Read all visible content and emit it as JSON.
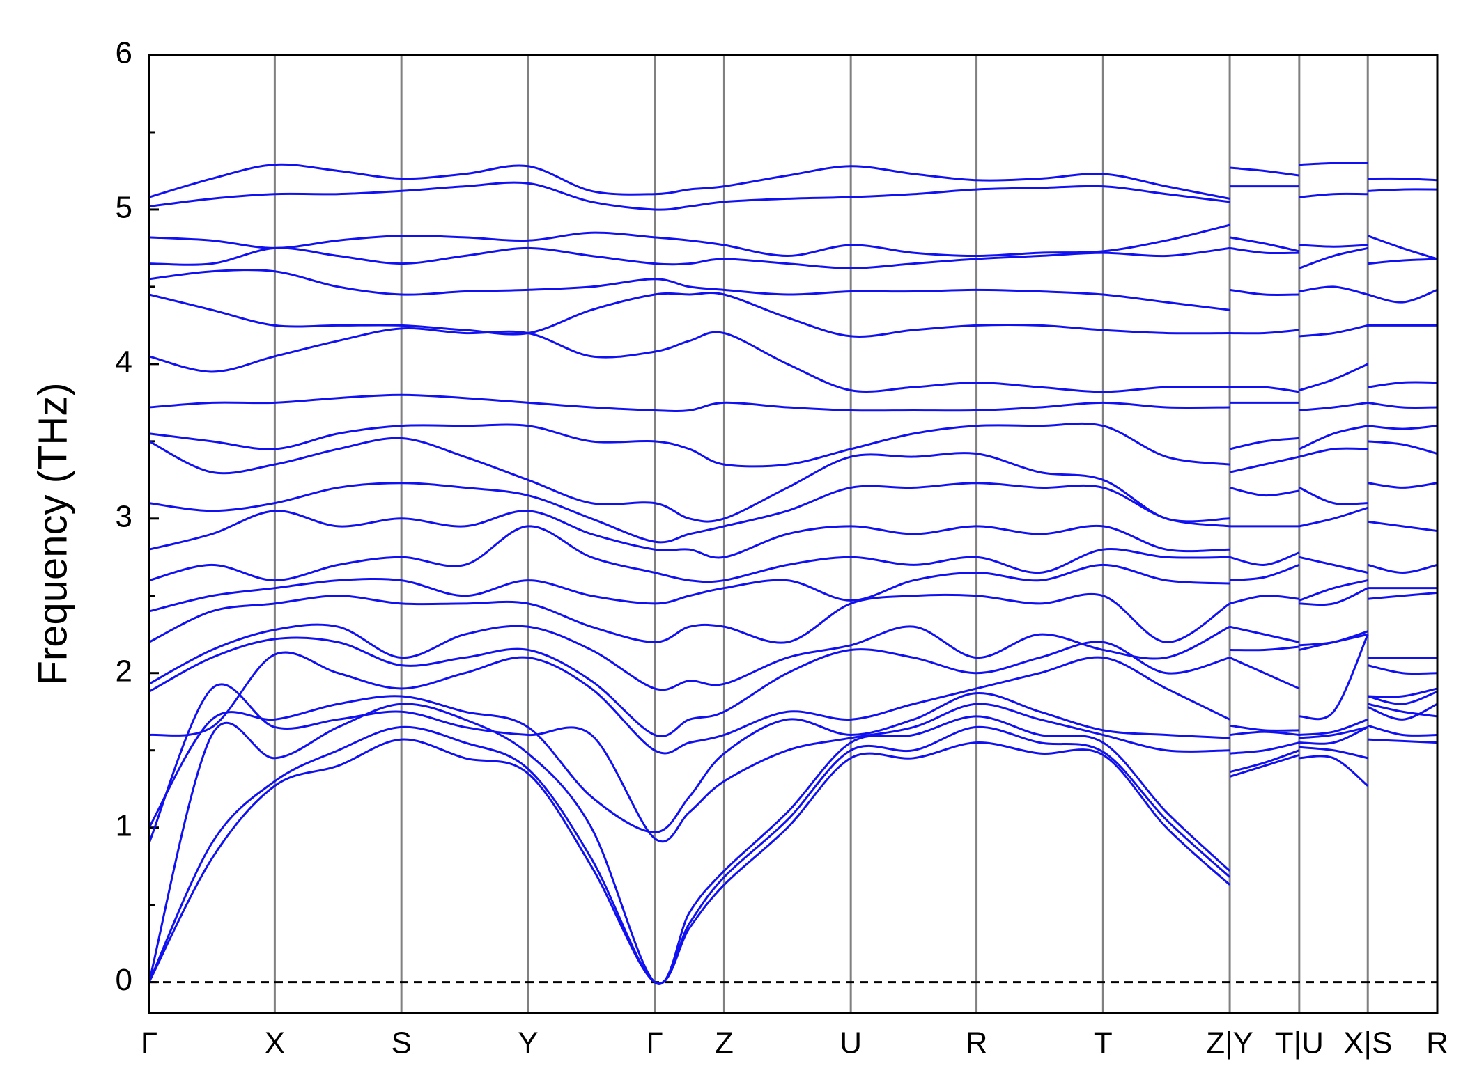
{
  "chart_data": {
    "type": "line",
    "ylabel": "Frequency (THz)",
    "color": "#1010f0",
    "grid": "x",
    "zeroline": true,
    "xlim": [
      0,
      13.53
    ],
    "ylim": [
      -0.2,
      6
    ],
    "xticks": [
      {
        "value": 0,
        "label": "Γ"
      },
      {
        "value": 1.32,
        "label": "X"
      },
      {
        "value": 2.65,
        "label": "S"
      },
      {
        "value": 3.98,
        "label": "Y"
      },
      {
        "value": 5.31,
        "label": "Γ"
      },
      {
        "value": 6.04,
        "label": "Z"
      },
      {
        "value": 7.37,
        "label": "U"
      },
      {
        "value": 8.69,
        "label": "R"
      },
      {
        "value": 10.02,
        "label": "T"
      },
      {
        "value": 11.35,
        "label": "Z|Y"
      },
      {
        "value": 12.08,
        "label": "T|U"
      },
      {
        "value": 12.8,
        "label": "X|S"
      },
      {
        "value": 13.53,
        "label": "R"
      }
    ],
    "yticks": [
      0,
      1,
      2,
      3,
      4,
      5,
      6
    ],
    "yminorticks": [
      0.5,
      1.5,
      2.5,
      3.5,
      4.5,
      5.5
    ],
    "x": [
      0,
      0.66,
      1.32,
      1.985,
      2.65,
      3.315,
      3.98,
      4.645,
      5.31,
      5.675,
      6.04,
      6.705,
      7.37,
      8.03,
      8.69,
      9.355,
      10.02,
      10.685,
      11.35,
      null,
      11.35,
      11.715,
      12.08,
      null,
      12.08,
      12.44,
      12.8,
      null,
      12.8,
      13.165,
      13.53
    ],
    "series": [
      {
        "values": [
          0,
          0.8,
          1.27,
          1.4,
          1.57,
          1.45,
          1.35,
          0.75,
          0,
          0.35,
          0.63,
          1.0,
          1.45,
          1.45,
          1.55,
          1.48,
          1.47,
          1.0,
          0.63,
          null,
          1.33,
          1.4,
          1.47,
          null,
          1.45,
          1.45,
          1.27,
          null,
          1.57,
          1.56,
          1.55
        ]
      },
      {
        "values": [
          0,
          0.9,
          1.3,
          1.5,
          1.65,
          1.55,
          1.38,
          0.8,
          0,
          0.38,
          0.68,
          1.05,
          1.5,
          1.5,
          1.65,
          1.55,
          1.49,
          1.05,
          0.68,
          null,
          1.36,
          1.42,
          1.5,
          null,
          1.52,
          1.5,
          1.45,
          null,
          1.66,
          1.6,
          1.6
        ]
      },
      {
        "values": [
          0,
          1.6,
          1.45,
          1.65,
          1.8,
          1.7,
          1.48,
          1.0,
          0,
          0.45,
          0.72,
          1.1,
          1.55,
          1.6,
          1.72,
          1.6,
          1.55,
          1.1,
          0.72,
          null,
          1.48,
          1.5,
          1.55,
          null,
          1.55,
          1.55,
          1.65,
          null,
          1.8,
          1.75,
          1.72
        ]
      },
      {
        "values": [
          0.9,
          1.9,
          1.65,
          1.7,
          1.75,
          1.65,
          1.6,
          1.6,
          0.93,
          1.1,
          1.3,
          1.5,
          1.58,
          1.65,
          1.8,
          1.7,
          1.6,
          1.5,
          1.5,
          null,
          1.6,
          1.62,
          1.6,
          null,
          1.58,
          1.6,
          1.65,
          null,
          1.78,
          1.7,
          1.8
        ]
      },
      {
        "values": [
          1.0,
          1.7,
          1.7,
          1.8,
          1.85,
          1.75,
          1.65,
          1.2,
          0.97,
          1.2,
          1.48,
          1.7,
          1.6,
          1.7,
          1.87,
          1.75,
          1.63,
          1.6,
          1.58,
          null,
          1.66,
          1.63,
          1.63,
          null,
          1.6,
          1.62,
          1.7,
          null,
          1.85,
          1.8,
          1.88
        ]
      },
      {
        "values": [
          1.6,
          1.65,
          2.12,
          2.0,
          1.9,
          2.0,
          2.1,
          1.9,
          1.5,
          1.55,
          1.6,
          1.75,
          1.7,
          1.8,
          1.9,
          2.0,
          2.1,
          1.9,
          1.7,
          null,
          2.1,
          2.0,
          1.9,
          null,
          1.72,
          1.75,
          2.25,
          null,
          1.85,
          1.85,
          1.9
        ]
      },
      {
        "values": [
          1.88,
          2.1,
          2.22,
          2.2,
          2.05,
          2.1,
          2.15,
          1.95,
          1.6,
          1.7,
          1.75,
          2.0,
          2.15,
          2.1,
          2.0,
          2.1,
          2.2,
          2.0,
          2.1,
          null,
          2.15,
          2.15,
          2.17,
          null,
          2.15,
          2.2,
          2.25,
          null,
          2.05,
          2.0,
          2.0
        ]
      },
      {
        "values": [
          1.93,
          2.15,
          2.28,
          2.3,
          2.1,
          2.25,
          2.3,
          2.15,
          1.9,
          1.95,
          1.93,
          2.1,
          2.18,
          2.3,
          2.1,
          2.25,
          2.15,
          2.1,
          2.3,
          null,
          2.3,
          2.25,
          2.2,
          null,
          2.18,
          2.2,
          2.27,
          null,
          2.1,
          2.1,
          2.1
        ]
      },
      {
        "values": [
          2.2,
          2.4,
          2.45,
          2.5,
          2.45,
          2.45,
          2.45,
          2.3,
          2.2,
          2.3,
          2.3,
          2.2,
          2.45,
          2.5,
          2.5,
          2.45,
          2.5,
          2.2,
          2.45,
          null,
          2.45,
          2.5,
          2.48,
          null,
          2.45,
          2.45,
          2.55,
          null,
          2.48,
          2.5,
          2.52
        ]
      },
      {
        "values": [
          2.4,
          2.5,
          2.55,
          2.6,
          2.6,
          2.5,
          2.6,
          2.5,
          2.45,
          2.5,
          2.55,
          2.6,
          2.47,
          2.6,
          2.65,
          2.6,
          2.7,
          2.6,
          2.58,
          null,
          2.6,
          2.62,
          2.7,
          null,
          2.47,
          2.55,
          2.6,
          null,
          2.55,
          2.55,
          2.55
        ]
      },
      {
        "values": [
          2.6,
          2.7,
          2.6,
          2.7,
          2.75,
          2.7,
          2.95,
          2.75,
          2.65,
          2.6,
          2.6,
          2.7,
          2.75,
          2.7,
          2.75,
          2.65,
          2.8,
          2.75,
          2.75,
          null,
          2.75,
          2.7,
          2.78,
          null,
          2.75,
          2.7,
          2.65,
          null,
          2.7,
          2.65,
          2.7
        ]
      },
      {
        "values": [
          2.8,
          2.9,
          3.05,
          2.95,
          3.0,
          2.95,
          3.05,
          2.9,
          2.8,
          2.8,
          2.75,
          2.9,
          2.95,
          2.9,
          2.95,
          2.9,
          2.95,
          2.8,
          2.8,
          null,
          2.95,
          2.95,
          2.95,
          null,
          2.95,
          3.0,
          3.07,
          null,
          2.98,
          2.95,
          2.92
        ]
      },
      {
        "values": [
          3.1,
          3.05,
          3.1,
          3.2,
          3.23,
          3.2,
          3.15,
          3.0,
          2.85,
          2.9,
          2.95,
          3.05,
          3.2,
          3.2,
          3.23,
          3.2,
          3.2,
          3.0,
          2.95,
          null,
          3.2,
          3.15,
          3.18,
          null,
          3.2,
          3.1,
          3.1,
          null,
          3.23,
          3.2,
          3.23
        ]
      },
      {
        "values": [
          3.5,
          3.3,
          3.35,
          3.45,
          3.52,
          3.4,
          3.25,
          3.1,
          3.1,
          3.0,
          3.0,
          3.2,
          3.4,
          3.4,
          3.42,
          3.3,
          3.25,
          3.0,
          3.0,
          null,
          3.3,
          3.35,
          3.4,
          null,
          3.4,
          3.45,
          3.45,
          null,
          3.5,
          3.48,
          3.42
        ]
      },
      {
        "values": [
          3.55,
          3.5,
          3.45,
          3.55,
          3.6,
          3.6,
          3.6,
          3.5,
          3.5,
          3.45,
          3.35,
          3.35,
          3.45,
          3.55,
          3.6,
          3.6,
          3.6,
          3.4,
          3.35,
          null,
          3.45,
          3.5,
          3.52,
          null,
          3.45,
          3.55,
          3.6,
          null,
          3.6,
          3.58,
          3.6
        ]
      },
      {
        "values": [
          3.72,
          3.75,
          3.75,
          3.78,
          3.8,
          3.78,
          3.75,
          3.72,
          3.7,
          3.7,
          3.75,
          3.72,
          3.7,
          3.7,
          3.7,
          3.72,
          3.75,
          3.72,
          3.72,
          null,
          3.75,
          3.75,
          3.75,
          null,
          3.7,
          3.72,
          3.75,
          null,
          3.75,
          3.72,
          3.72
        ]
      },
      {
        "values": [
          4.05,
          3.95,
          4.05,
          4.15,
          4.23,
          4.2,
          4.2,
          4.05,
          4.08,
          4.15,
          4.2,
          4.0,
          3.83,
          3.85,
          3.88,
          3.85,
          3.82,
          3.85,
          3.85,
          null,
          3.85,
          3.85,
          3.82,
          null,
          3.83,
          3.9,
          4.0,
          null,
          3.85,
          3.88,
          3.88
        ]
      },
      {
        "values": [
          4.45,
          4.35,
          4.25,
          4.25,
          4.25,
          4.22,
          4.2,
          4.35,
          4.45,
          4.45,
          4.45,
          4.3,
          4.18,
          4.22,
          4.25,
          4.25,
          4.22,
          4.2,
          4.2,
          null,
          4.2,
          4.2,
          4.22,
          null,
          4.18,
          4.2,
          4.25,
          null,
          4.25,
          4.25,
          4.25
        ]
      },
      {
        "values": [
          4.55,
          4.6,
          4.6,
          4.5,
          4.45,
          4.47,
          4.48,
          4.5,
          4.55,
          4.5,
          4.48,
          4.45,
          4.47,
          4.47,
          4.48,
          4.47,
          4.45,
          4.4,
          4.35,
          null,
          4.48,
          4.45,
          4.45,
          null,
          4.47,
          4.5,
          4.45,
          null,
          4.45,
          4.4,
          4.48
        ]
      },
      {
        "values": [
          4.65,
          4.65,
          4.75,
          4.7,
          4.65,
          4.7,
          4.75,
          4.7,
          4.65,
          4.65,
          4.68,
          4.65,
          4.62,
          4.65,
          4.68,
          4.7,
          4.72,
          4.7,
          4.75,
          null,
          4.75,
          4.72,
          4.72,
          null,
          4.62,
          4.7,
          4.75,
          null,
          4.65,
          4.67,
          4.68
        ]
      },
      {
        "values": [
          4.82,
          4.8,
          4.75,
          4.8,
          4.83,
          4.82,
          4.8,
          4.85,
          4.82,
          4.8,
          4.77,
          4.7,
          4.77,
          4.72,
          4.7,
          4.72,
          4.73,
          4.8,
          4.9,
          null,
          4.82,
          4.78,
          4.73,
          null,
          4.77,
          4.76,
          4.77,
          null,
          4.83,
          4.75,
          4.68
        ]
      },
      {
        "values": [
          5.02,
          5.07,
          5.1,
          5.1,
          5.12,
          5.15,
          5.17,
          5.05,
          5.0,
          5.02,
          5.05,
          5.07,
          5.08,
          5.1,
          5.13,
          5.14,
          5.15,
          5.1,
          5.05,
          null,
          5.15,
          5.15,
          5.15,
          null,
          5.08,
          5.1,
          5.1,
          null,
          5.12,
          5.13,
          5.13
        ]
      },
      {
        "values": [
          5.08,
          5.2,
          5.29,
          5.25,
          5.2,
          5.23,
          5.28,
          5.12,
          5.1,
          5.13,
          5.15,
          5.22,
          5.28,
          5.23,
          5.19,
          5.2,
          5.23,
          5.15,
          5.07,
          null,
          5.27,
          5.25,
          5.22,
          null,
          5.29,
          5.3,
          5.3,
          null,
          5.2,
          5.2,
          5.19
        ]
      }
    ]
  }
}
